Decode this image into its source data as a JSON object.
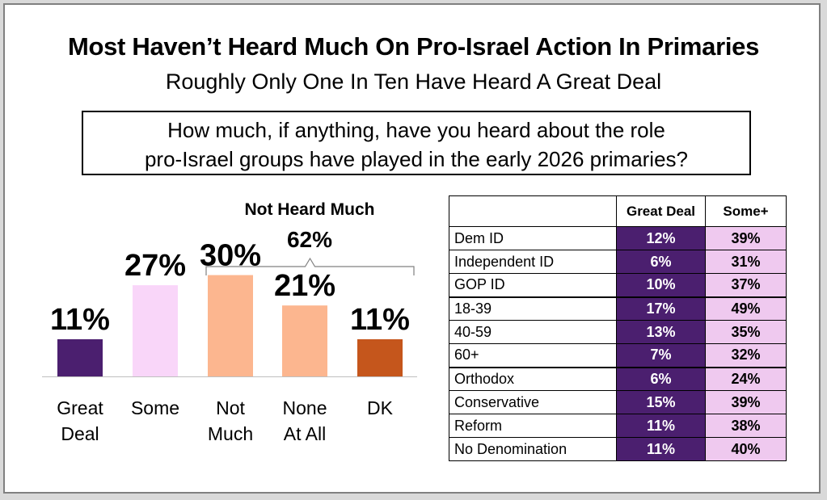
{
  "title": "Most Haven’t Heard Much On Pro-Israel Action In Primaries",
  "subtitle": "Roughly Only One In Ten Have Heard A Great Deal",
  "question": {
    "line1": "How much, if anything, have you heard about the role",
    "line2": "pro-Israel groups have played in the early 2026 primaries?"
  },
  "chart_data": [
    {
      "type": "bar",
      "categories": [
        [
          "Great",
          "Deal"
        ],
        [
          "Some"
        ],
        [
          "Not",
          "Much"
        ],
        [
          "None",
          "At All"
        ],
        [
          "DK"
        ]
      ],
      "values": [
        11,
        27,
        30,
        21,
        11
      ],
      "value_labels": [
        "11%",
        "27%",
        "30%",
        "21%",
        "11%"
      ],
      "colors": [
        "#4b1f6f",
        "#f9d6f9",
        "#fcb68f",
        "#fcb68f",
        "#c5561c"
      ],
      "ylim": [
        0,
        100
      ],
      "grid": false,
      "annotation": {
        "label": "Not Heard Much",
        "value": "62%",
        "spans_categories": [
          2,
          3,
          4
        ]
      }
    },
    {
      "type": "table",
      "columns": [
        "",
        "Great Deal",
        "Some+"
      ],
      "group_breaks": [
        3,
        6
      ],
      "rows": [
        {
          "group": "Dem ID",
          "great_deal": "12%",
          "some_plus": "39%"
        },
        {
          "group": "Independent ID",
          "great_deal": "6%",
          "some_plus": "31%"
        },
        {
          "group": "GOP ID",
          "great_deal": "10%",
          "some_plus": "37%"
        },
        {
          "group": "18-39",
          "great_deal": "17%",
          "some_plus": "49%"
        },
        {
          "group": "40-59",
          "great_deal": "13%",
          "some_plus": "35%"
        },
        {
          "group": "60+",
          "great_deal": "7%",
          "some_plus": "32%"
        },
        {
          "group": "Orthodox",
          "great_deal": "6%",
          "some_plus": "24%"
        },
        {
          "group": "Conservative",
          "great_deal": "15%",
          "some_plus": "39%"
        },
        {
          "group": "Reform",
          "great_deal": "11%",
          "some_plus": "38%"
        },
        {
          "group": "No Denomination",
          "great_deal": "11%",
          "some_plus": "40%"
        }
      ]
    }
  ]
}
